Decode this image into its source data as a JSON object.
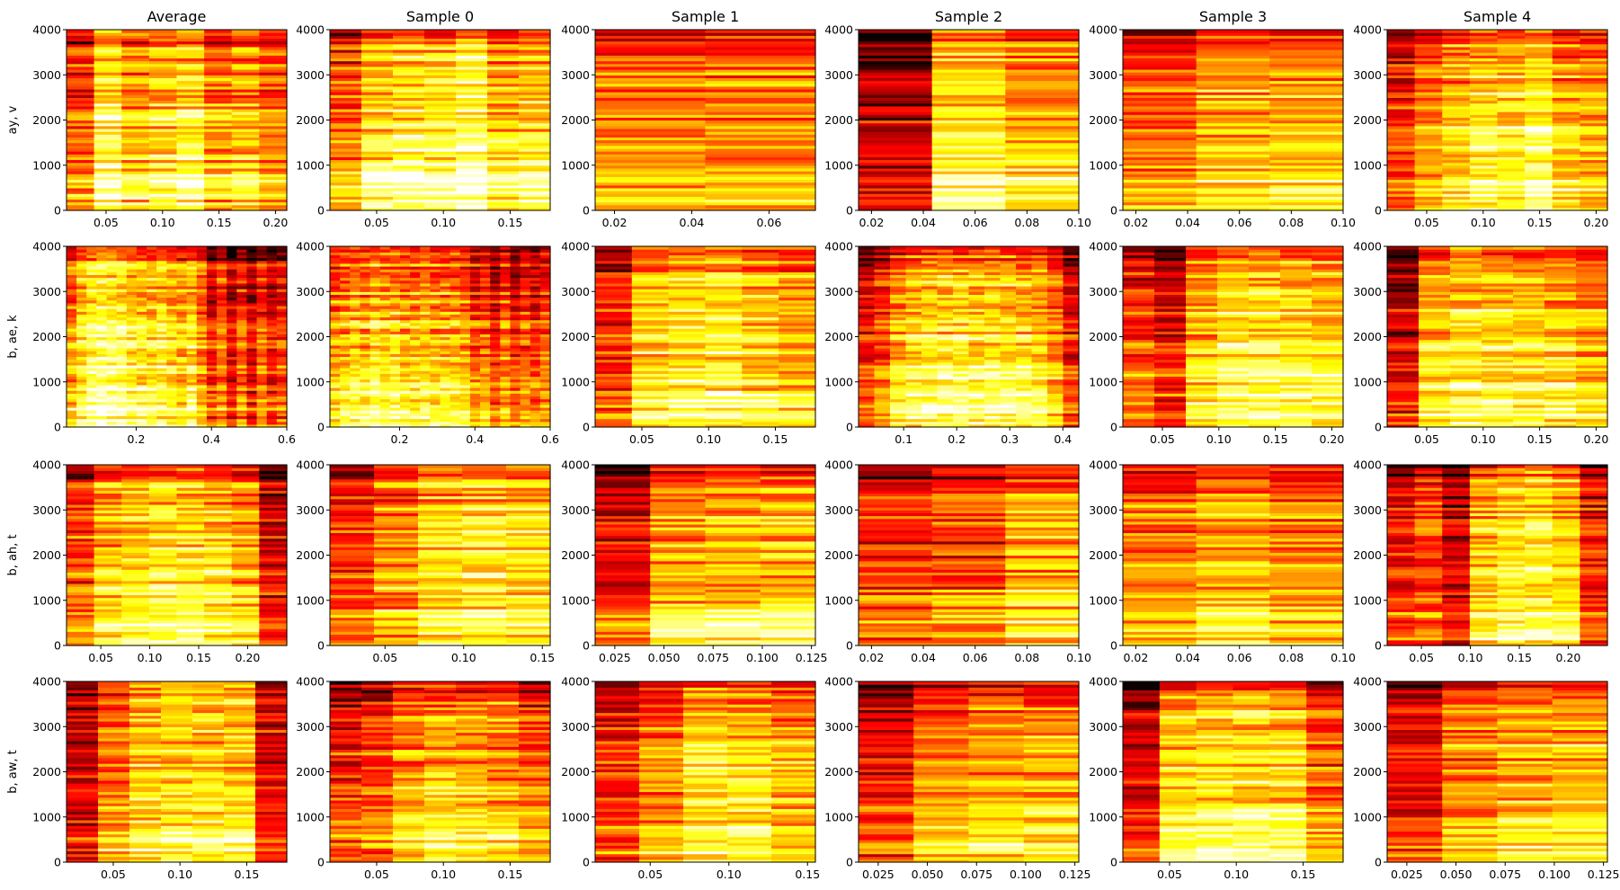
{
  "figure": {
    "column_titles": [
      "Average",
      "Sample 0",
      "Sample 1",
      "Sample 2",
      "Sample 3",
      "Sample 4"
    ],
    "row_labels": [
      "ay, v",
      "b, ae, k",
      "b, ah, t",
      "b, aw, t"
    ],
    "colormap": "hot",
    "colors": {
      "dark": "#7a0000",
      "red": "#e60000",
      "orange": "#ff8c00",
      "yellow": "#ffff3a",
      "white": "#ffffee"
    }
  },
  "chart_data": [
    {
      "type": "heatmap",
      "row": 0,
      "col": 0,
      "xlim": [
        0.015,
        0.21
      ],
      "ylim": [
        0,
        4000
      ],
      "xticks": [
        0.05,
        0.1,
        0.15,
        0.2
      ],
      "xtick_labels": [
        "0.05",
        "0.10",
        "0.15",
        "0.20"
      ],
      "yticks": [
        0,
        1000,
        2000,
        3000,
        4000
      ],
      "ytick_labels": [
        "0",
        "1000",
        "2000",
        "3000",
        "4000"
      ],
      "frames": 8,
      "profile": [
        0.45,
        0.75,
        0.62,
        0.68,
        0.72,
        0.55,
        0.6,
        0.5
      ],
      "seed": 11
    },
    {
      "type": "heatmap",
      "row": 0,
      "col": 1,
      "xlim": [
        0.015,
        0.18
      ],
      "ylim": [
        0,
        4000
      ],
      "xticks": [
        0.05,
        0.1,
        0.15
      ],
      "xtick_labels": [
        "0.05",
        "0.10",
        "0.15"
      ],
      "yticks": [
        0,
        1000,
        2000,
        3000,
        4000
      ],
      "ytick_labels": [
        "0",
        "1000",
        "2000",
        "3000",
        "4000"
      ],
      "frames": 7,
      "profile": [
        0.5,
        0.7,
        0.75,
        0.72,
        0.8,
        0.65,
        0.7
      ],
      "seed": 12
    },
    {
      "type": "heatmap",
      "row": 0,
      "col": 2,
      "xlim": [
        0.015,
        0.072
      ],
      "ylim": [
        0,
        4000
      ],
      "xticks": [
        0.02,
        0.04,
        0.06
      ],
      "xtick_labels": [
        "0.02",
        "0.04",
        "0.06"
      ],
      "yticks": [
        0,
        1000,
        2000,
        3000,
        4000
      ],
      "ytick_labels": [
        "0",
        "1000",
        "2000",
        "3000",
        "4000"
      ],
      "frames": 2,
      "profile": [
        0.55,
        0.55
      ],
      "seed": 13
    },
    {
      "type": "heatmap",
      "row": 0,
      "col": 3,
      "xlim": [
        0.015,
        0.1
      ],
      "ylim": [
        0,
        4000
      ],
      "xticks": [
        0.02,
        0.04,
        0.06,
        0.08,
        0.1
      ],
      "xtick_labels": [
        "0.02",
        "0.04",
        "0.06",
        "0.08",
        "0.10"
      ],
      "yticks": [
        0,
        1000,
        2000,
        3000,
        4000
      ],
      "ytick_labels": [
        "0",
        "1000",
        "2000",
        "3000",
        "4000"
      ],
      "frames": 3,
      "profile": [
        0.25,
        0.72,
        0.62
      ],
      "seed": 14
    },
    {
      "type": "heatmap",
      "row": 0,
      "col": 4,
      "xlim": [
        0.015,
        0.1
      ],
      "ylim": [
        0,
        4000
      ],
      "xticks": [
        0.02,
        0.04,
        0.06,
        0.08,
        0.1
      ],
      "xtick_labels": [
        "0.02",
        "0.04",
        "0.06",
        "0.08",
        "0.10"
      ],
      "yticks": [
        0,
        1000,
        2000,
        3000,
        4000
      ],
      "ytick_labels": [
        "0",
        "1000",
        "2000",
        "3000",
        "4000"
      ],
      "frames": 3,
      "profile": [
        0.5,
        0.62,
        0.62
      ],
      "seed": 15
    },
    {
      "type": "heatmap",
      "row": 0,
      "col": 5,
      "xlim": [
        0.015,
        0.21
      ],
      "ylim": [
        0,
        4000
      ],
      "xticks": [
        0.05,
        0.1,
        0.15,
        0.2
      ],
      "xtick_labels": [
        "0.05",
        "0.10",
        "0.15",
        "0.20"
      ],
      "yticks": [
        0,
        1000,
        2000,
        3000,
        4000
      ],
      "ytick_labels": [
        "0",
        "1000",
        "2000",
        "3000",
        "4000"
      ],
      "frames": 8,
      "profile": [
        0.4,
        0.55,
        0.65,
        0.72,
        0.7,
        0.75,
        0.62,
        0.6
      ],
      "seed": 16
    },
    {
      "type": "heatmap",
      "row": 1,
      "col": 0,
      "xlim": [
        0.015,
        0.6
      ],
      "ylim": [
        0,
        4000
      ],
      "xticks": [
        0.2,
        0.4,
        0.6
      ],
      "xtick_labels": [
        "0.2",
        "0.4",
        "0.6"
      ],
      "yticks": [
        0,
        1000,
        2000,
        3000,
        4000
      ],
      "ytick_labels": [
        "0",
        "1000",
        "2000",
        "3000",
        "4000"
      ],
      "frames": 22,
      "profile": [
        0.55,
        0.7,
        0.78,
        0.82,
        0.8,
        0.78,
        0.72,
        0.7,
        0.68,
        0.72,
        0.65,
        0.62,
        0.7,
        0.55,
        0.35,
        0.5,
        0.3,
        0.45,
        0.3,
        0.45,
        0.35,
        0.4
      ],
      "seed": 21
    },
    {
      "type": "heatmap",
      "row": 1,
      "col": 1,
      "xlim": [
        0.015,
        0.6
      ],
      "ylim": [
        0,
        4000
      ],
      "xticks": [
        0.2,
        0.4,
        0.6
      ],
      "xtick_labels": [
        "0.2",
        "0.4",
        "0.6"
      ],
      "yticks": [
        0,
        1000,
        2000,
        3000,
        4000
      ],
      "ytick_labels": [
        "0",
        "1000",
        "2000",
        "3000",
        "4000"
      ],
      "frames": 22,
      "profile": [
        0.55,
        0.6,
        0.65,
        0.62,
        0.7,
        0.65,
        0.68,
        0.62,
        0.6,
        0.65,
        0.6,
        0.62,
        0.6,
        0.58,
        0.45,
        0.5,
        0.35,
        0.5,
        0.38,
        0.45,
        0.4,
        0.45
      ],
      "seed": 22
    },
    {
      "type": "heatmap",
      "row": 1,
      "col": 2,
      "xlim": [
        0.015,
        0.18
      ],
      "ylim": [
        0,
        4000
      ],
      "xticks": [
        0.05,
        0.1,
        0.15
      ],
      "xtick_labels": [
        "0.05",
        "0.10",
        "0.15"
      ],
      "yticks": [
        0,
        1000,
        2000,
        3000,
        4000
      ],
      "ytick_labels": [
        "0",
        "1000",
        "2000",
        "3000",
        "4000"
      ],
      "frames": 6,
      "profile": [
        0.4,
        0.65,
        0.7,
        0.72,
        0.65,
        0.6
      ],
      "seed": 23
    },
    {
      "type": "heatmap",
      "row": 1,
      "col": 3,
      "xlim": [
        0.015,
        0.43
      ],
      "ylim": [
        0,
        4000
      ],
      "xticks": [
        0.1,
        0.2,
        0.3,
        0.4
      ],
      "xtick_labels": [
        "0.1",
        "0.2",
        "0.3",
        "0.4"
      ],
      "yticks": [
        0,
        1000,
        2000,
        3000,
        4000
      ],
      "ytick_labels": [
        "0",
        "1000",
        "2000",
        "3000",
        "4000"
      ],
      "frames": 14,
      "profile": [
        0.35,
        0.45,
        0.62,
        0.68,
        0.7,
        0.72,
        0.72,
        0.7,
        0.72,
        0.7,
        0.68,
        0.65,
        0.55,
        0.35
      ],
      "seed": 24
    },
    {
      "type": "heatmap",
      "row": 1,
      "col": 4,
      "xlim": [
        0.015,
        0.21
      ],
      "ylim": [
        0,
        4000
      ],
      "xticks": [
        0.05,
        0.1,
        0.15,
        0.2
      ],
      "xtick_labels": [
        "0.05",
        "0.10",
        "0.15",
        "0.20"
      ],
      "yticks": [
        0,
        1000,
        2000,
        3000,
        4000
      ],
      "ytick_labels": [
        "0",
        "1000",
        "2000",
        "3000",
        "4000"
      ],
      "frames": 7,
      "profile": [
        0.45,
        0.35,
        0.65,
        0.75,
        0.75,
        0.72,
        0.7
      ],
      "seed": 25
    },
    {
      "type": "heatmap",
      "row": 1,
      "col": 5,
      "xlim": [
        0.015,
        0.21
      ],
      "ylim": [
        0,
        4000
      ],
      "xticks": [
        0.05,
        0.1,
        0.15,
        0.2
      ],
      "xtick_labels": [
        "0.05",
        "0.10",
        "0.15",
        "0.20"
      ],
      "yticks": [
        0,
        1000,
        2000,
        3000,
        4000
      ],
      "ytick_labels": [
        "0",
        "1000",
        "2000",
        "3000",
        "4000"
      ],
      "frames": 7,
      "profile": [
        0.3,
        0.65,
        0.72,
        0.72,
        0.7,
        0.68,
        0.6
      ],
      "seed": 26
    },
    {
      "type": "heatmap",
      "row": 2,
      "col": 0,
      "xlim": [
        0.015,
        0.24
      ],
      "ylim": [
        0,
        4000
      ],
      "xticks": [
        0.05,
        0.1,
        0.15,
        0.2
      ],
      "xtick_labels": [
        "0.05",
        "0.10",
        "0.15",
        "0.20"
      ],
      "yticks": [
        0,
        1000,
        2000,
        3000,
        4000
      ],
      "ytick_labels": [
        "0",
        "1000",
        "2000",
        "3000",
        "4000"
      ],
      "frames": 8,
      "profile": [
        0.45,
        0.65,
        0.68,
        0.72,
        0.72,
        0.68,
        0.6,
        0.3
      ],
      "seed": 31
    },
    {
      "type": "heatmap",
      "row": 2,
      "col": 1,
      "xlim": [
        0.015,
        0.155
      ],
      "ylim": [
        0,
        4000
      ],
      "xticks": [
        0.05,
        0.1,
        0.15
      ],
      "xtick_labels": [
        "0.05",
        "0.10",
        "0.15"
      ],
      "yticks": [
        0,
        1000,
        2000,
        3000,
        4000
      ],
      "ytick_labels": [
        "0",
        "1000",
        "2000",
        "3000",
        "4000"
      ],
      "frames": 5,
      "profile": [
        0.4,
        0.55,
        0.68,
        0.7,
        0.68
      ],
      "seed": 32
    },
    {
      "type": "heatmap",
      "row": 2,
      "col": 2,
      "xlim": [
        0.015,
        0.127
      ],
      "ylim": [
        0,
        4000
      ],
      "xticks": [
        0.025,
        0.05,
        0.075,
        0.1,
        0.125
      ],
      "xtick_labels": [
        "0.025",
        "0.050",
        "0.075",
        "0.100",
        "0.125"
      ],
      "yticks": [
        0,
        1000,
        2000,
        3000,
        4000
      ],
      "ytick_labels": [
        "0",
        "1000",
        "2000",
        "3000",
        "4000"
      ],
      "frames": 4,
      "profile": [
        0.35,
        0.6,
        0.65,
        0.65
      ],
      "seed": 33
    },
    {
      "type": "heatmap",
      "row": 2,
      "col": 3,
      "xlim": [
        0.015,
        0.1
      ],
      "ylim": [
        0,
        4000
      ],
      "xticks": [
        0.02,
        0.04,
        0.06,
        0.08,
        0.1
      ],
      "xtick_labels": [
        "0.02",
        "0.04",
        "0.06",
        "0.08",
        "0.10"
      ],
      "yticks": [
        0,
        1000,
        2000,
        3000,
        4000
      ],
      "ytick_labels": [
        "0",
        "1000",
        "2000",
        "3000",
        "4000"
      ],
      "frames": 3,
      "profile": [
        0.4,
        0.45,
        0.6
      ],
      "seed": 34
    },
    {
      "type": "heatmap",
      "row": 2,
      "col": 4,
      "xlim": [
        0.015,
        0.1
      ],
      "ylim": [
        0,
        4000
      ],
      "xticks": [
        0.02,
        0.04,
        0.06,
        0.08,
        0.1
      ],
      "xtick_labels": [
        "0.02",
        "0.04",
        "0.06",
        "0.08",
        "0.10"
      ],
      "yticks": [
        0,
        1000,
        2000,
        3000,
        4000
      ],
      "ytick_labels": [
        "0",
        "1000",
        "2000",
        "3000",
        "4000"
      ],
      "frames": 3,
      "profile": [
        0.55,
        0.62,
        0.55
      ],
      "seed": 35
    },
    {
      "type": "heatmap",
      "row": 2,
      "col": 5,
      "xlim": [
        0.015,
        0.24
      ],
      "ylim": [
        0,
        4000
      ],
      "xticks": [
        0.05,
        0.1,
        0.15,
        0.2
      ],
      "xtick_labels": [
        "0.05",
        "0.10",
        "0.15",
        "0.20"
      ],
      "yticks": [
        0,
        1000,
        2000,
        3000,
        4000
      ],
      "ytick_labels": [
        "0",
        "1000",
        "2000",
        "3000",
        "4000"
      ],
      "frames": 8,
      "profile": [
        0.35,
        0.45,
        0.3,
        0.65,
        0.72,
        0.75,
        0.68,
        0.4
      ],
      "seed": 36
    },
    {
      "type": "heatmap",
      "row": 3,
      "col": 0,
      "xlim": [
        0.015,
        0.18
      ],
      "ylim": [
        0,
        4000
      ],
      "xticks": [
        0.05,
        0.1,
        0.15
      ],
      "xtick_labels": [
        "0.05",
        "0.10",
        "0.15"
      ],
      "yticks": [
        0,
        1000,
        2000,
        3000,
        4000
      ],
      "ytick_labels": [
        "0",
        "1000",
        "2000",
        "3000",
        "4000"
      ],
      "frames": 7,
      "profile": [
        0.3,
        0.55,
        0.68,
        0.72,
        0.7,
        0.72,
        0.35
      ],
      "seed": 41
    },
    {
      "type": "heatmap",
      "row": 3,
      "col": 1,
      "xlim": [
        0.015,
        0.18
      ],
      "ylim": [
        0,
        4000
      ],
      "xticks": [
        0.05,
        0.1,
        0.15
      ],
      "xtick_labels": [
        "0.05",
        "0.10",
        "0.15"
      ],
      "yticks": [
        0,
        1000,
        2000,
        3000,
        4000
      ],
      "ytick_labels": [
        "0",
        "1000",
        "2000",
        "3000",
        "4000"
      ],
      "frames": 7,
      "profile": [
        0.4,
        0.45,
        0.6,
        0.65,
        0.62,
        0.6,
        0.5
      ],
      "seed": 42
    },
    {
      "type": "heatmap",
      "row": 3,
      "col": 2,
      "xlim": [
        0.015,
        0.155
      ],
      "ylim": [
        0,
        4000
      ],
      "xticks": [
        0.05,
        0.1,
        0.15
      ],
      "xtick_labels": [
        "0.05",
        "0.10",
        "0.15"
      ],
      "yticks": [
        0,
        1000,
        2000,
        3000,
        4000
      ],
      "ytick_labels": [
        "0",
        "1000",
        "2000",
        "3000",
        "4000"
      ],
      "frames": 5,
      "profile": [
        0.4,
        0.55,
        0.7,
        0.68,
        0.6
      ],
      "seed": 43
    },
    {
      "type": "heatmap",
      "row": 3,
      "col": 3,
      "xlim": [
        0.015,
        0.127
      ],
      "ylim": [
        0,
        4000
      ],
      "xticks": [
        0.025,
        0.05,
        0.075,
        0.1,
        0.125
      ],
      "xtick_labels": [
        "0.025",
        "0.050",
        "0.075",
        "0.100",
        "0.125"
      ],
      "yticks": [
        0,
        1000,
        2000,
        3000,
        4000
      ],
      "ytick_labels": [
        "0",
        "1000",
        "2000",
        "3000",
        "4000"
      ],
      "frames": 4,
      "profile": [
        0.35,
        0.55,
        0.62,
        0.6
      ],
      "seed": 44
    },
    {
      "type": "heatmap",
      "row": 3,
      "col": 4,
      "xlim": [
        0.015,
        0.18
      ],
      "ylim": [
        0,
        4000
      ],
      "xticks": [
        0.05,
        0.1,
        0.15
      ],
      "xtick_labels": [
        "0.05",
        "0.10",
        "0.15"
      ],
      "yticks": [
        0,
        1000,
        2000,
        3000,
        4000
      ],
      "ytick_labels": [
        "0",
        "1000",
        "2000",
        "3000",
        "4000"
      ],
      "frames": 6,
      "profile": [
        0.3,
        0.68,
        0.72,
        0.72,
        0.7,
        0.5
      ],
      "seed": 45
    },
    {
      "type": "heatmap",
      "row": 3,
      "col": 5,
      "xlim": [
        0.015,
        0.127
      ],
      "ylim": [
        0,
        4000
      ],
      "xticks": [
        0.025,
        0.05,
        0.075,
        0.1,
        0.125
      ],
      "xtick_labels": [
        "0.025",
        "0.050",
        "0.075",
        "0.100",
        "0.125"
      ],
      "yticks": [
        0,
        1000,
        2000,
        3000,
        4000
      ],
      "ytick_labels": [
        "0",
        "1000",
        "2000",
        "3000",
        "4000"
      ],
      "frames": 4,
      "profile": [
        0.35,
        0.55,
        0.62,
        0.65
      ],
      "seed": 46
    }
  ]
}
